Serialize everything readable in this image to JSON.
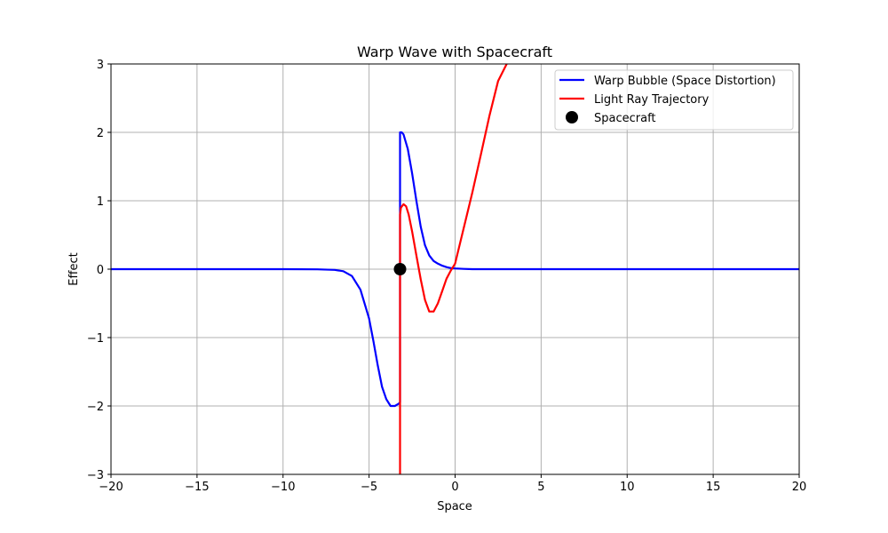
{
  "chart_data": {
    "type": "line",
    "title": "Warp Wave with Spacecraft",
    "xlabel": "Space",
    "ylabel": "Effect",
    "xlim": [
      -20,
      20
    ],
    "ylim": [
      -3,
      3
    ],
    "xticks": [
      -20,
      -15,
      -10,
      -5,
      0,
      5,
      10,
      15,
      20
    ],
    "yticks": [
      -3,
      -2,
      -1,
      0,
      1,
      2,
      3
    ],
    "xtick_labels": [
      "−20",
      "−15",
      "−10",
      "−5",
      "0",
      "5",
      "10",
      "15",
      "20"
    ],
    "ytick_labels": [
      "−3",
      "−2",
      "−1",
      "0",
      "1",
      "2",
      "3"
    ],
    "grid": true,
    "legend_position": "top-right",
    "series": [
      {
        "name": "Warp Bubble (Space Distortion)",
        "kind": "line",
        "color": "#0000ff",
        "x": [
          -20,
          -10,
          -8,
          -7,
          -6.5,
          -6,
          -5.5,
          -5,
          -4.75,
          -4.5,
          -4.25,
          -4,
          -3.75,
          -3.5,
          -3.3,
          -3.2,
          -3.2,
          -3.1,
          -3.0,
          -2.75,
          -2.5,
          -2.25,
          -2,
          -1.75,
          -1.5,
          -1.25,
          -1,
          -0.75,
          -0.5,
          -0.25,
          0,
          0.5,
          1,
          2,
          5,
          10,
          20
        ],
        "y": [
          0,
          0,
          -0.002,
          -0.01,
          -0.03,
          -0.1,
          -0.3,
          -0.72,
          -1.05,
          -1.4,
          -1.72,
          -1.9,
          -2.0,
          -2.0,
          -1.97,
          -1.95,
          2.0,
          2.0,
          1.97,
          1.76,
          1.4,
          1.0,
          0.62,
          0.35,
          0.2,
          0.12,
          0.08,
          0.05,
          0.03,
          0.015,
          0.01,
          0.004,
          0.0,
          0,
          0,
          0,
          0
        ]
      },
      {
        "name": "Light Ray Trajectory",
        "kind": "line",
        "color": "#ff0000",
        "x": [
          -3.2,
          -3.2,
          -3.15,
          -3.0,
          -2.85,
          -2.7,
          -2.5,
          -2.25,
          -2.0,
          -1.75,
          -1.5,
          -1.25,
          -1.0,
          -0.75,
          -0.5,
          -0.25,
          0,
          0.5,
          1.0,
          1.5,
          2.0,
          2.5,
          3.0
        ],
        "y": [
          -3.0,
          0.8,
          0.9,
          0.95,
          0.92,
          0.8,
          0.55,
          0.2,
          -0.15,
          -0.45,
          -0.62,
          -0.62,
          -0.5,
          -0.32,
          -0.14,
          -0.02,
          0.08,
          0.6,
          1.12,
          1.68,
          2.25,
          2.75,
          3.0
        ]
      },
      {
        "name": "Spacecraft",
        "kind": "marker",
        "color": "#000000",
        "x": [
          -3.2
        ],
        "y": [
          0
        ]
      }
    ]
  }
}
